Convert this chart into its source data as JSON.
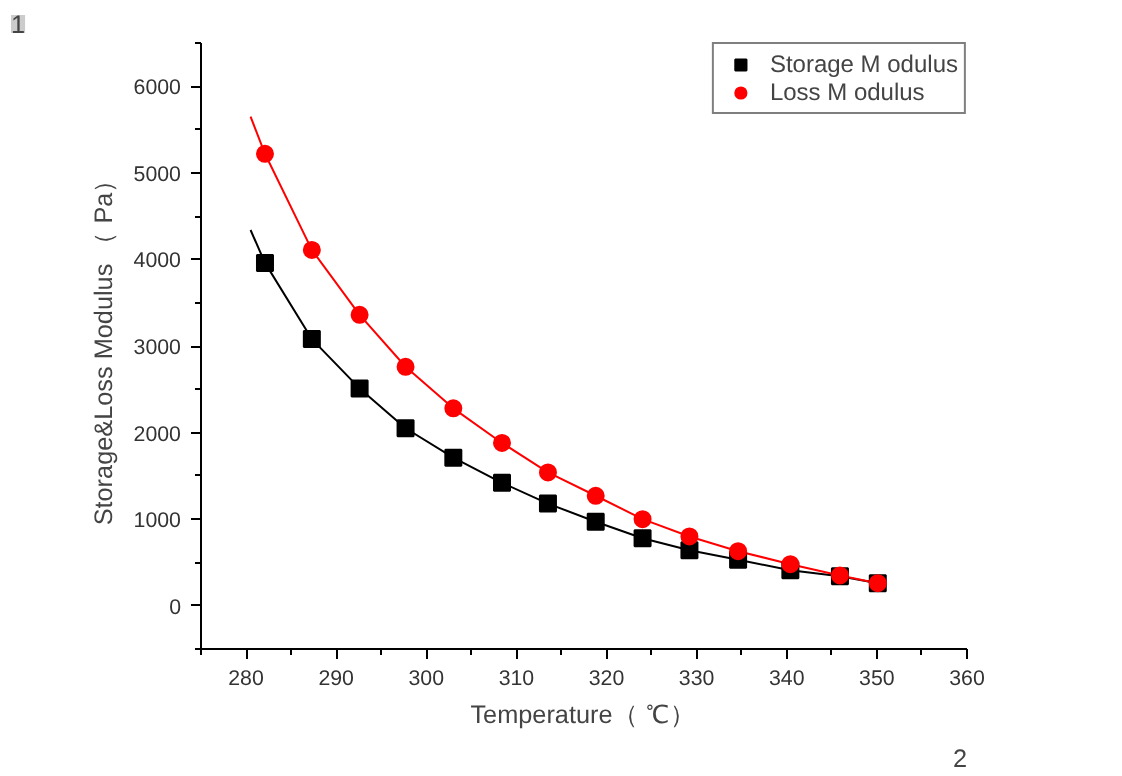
{
  "chart_data": {
    "type": "scatter",
    "xlabel": "Temperature（ ℃）",
    "ylabel": "Storage&Loss Modulus （ Pa）",
    "xlim": [
      275,
      360
    ],
    "xticks": [
      280,
      290,
      300,
      310,
      320,
      330,
      340,
      350,
      360
    ],
    "ylim": [
      -500,
      6500
    ],
    "yticks": [
      0,
      1000,
      2000,
      3000,
      4000,
      5000,
      6000
    ],
    "grid": false,
    "legend": "top right",
    "annotations": [
      "1",
      "2"
    ],
    "series": [
      {
        "type": "line",
        "color": "#000000",
        "marker": "none",
        "x": [
          280.5,
          282.1,
          287.3,
          292.6,
          297.7,
          303.0,
          308.4,
          313.5,
          318.8,
          324.0,
          329.2,
          334.6,
          340.4,
          345.9,
          350.1
        ],
        "values": [
          4340,
          3960,
          3080,
          2510,
          2050,
          1710,
          1420,
          1180,
          970,
          780,
          640,
          530,
          410,
          340,
          260
        ]
      },
      {
        "type": "line",
        "color": "#ff0000",
        "marker": "none",
        "x": [
          280.5,
          282.1,
          287.3,
          292.6,
          297.7,
          303.0,
          308.4,
          313.5,
          318.8,
          324.0,
          329.2,
          334.6,
          340.4,
          345.9,
          350.1
        ],
        "values": [
          5650,
          5220,
          4110,
          3360,
          2760,
          2280,
          1880,
          1540,
          1270,
          1000,
          800,
          630,
          480,
          350,
          260
        ]
      },
      {
        "name": "Storage M odulus",
        "color": "#000000",
        "marker": "square",
        "x": [
          282.1,
          287.3,
          292.6,
          297.7,
          303.0,
          308.4,
          313.5,
          318.8,
          324.0,
          329.2,
          334.6,
          340.4,
          345.9,
          350.1
        ],
        "values": [
          3960,
          3080,
          2510,
          2050,
          1710,
          1420,
          1180,
          970,
          780,
          640,
          530,
          410,
          340,
          260
        ]
      },
      {
        "name": "Loss M odulus",
        "color": "#ff0000",
        "marker": "circle",
        "x": [
          282.1,
          287.3,
          292.6,
          297.7,
          303.0,
          308.4,
          313.5,
          318.8,
          324.0,
          329.2,
          334.6,
          340.4,
          345.9,
          350.1
        ],
        "values": [
          5220,
          4110,
          3360,
          2760,
          2280,
          1880,
          1540,
          1270,
          1000,
          800,
          630,
          480,
          350,
          260
        ]
      }
    ]
  }
}
